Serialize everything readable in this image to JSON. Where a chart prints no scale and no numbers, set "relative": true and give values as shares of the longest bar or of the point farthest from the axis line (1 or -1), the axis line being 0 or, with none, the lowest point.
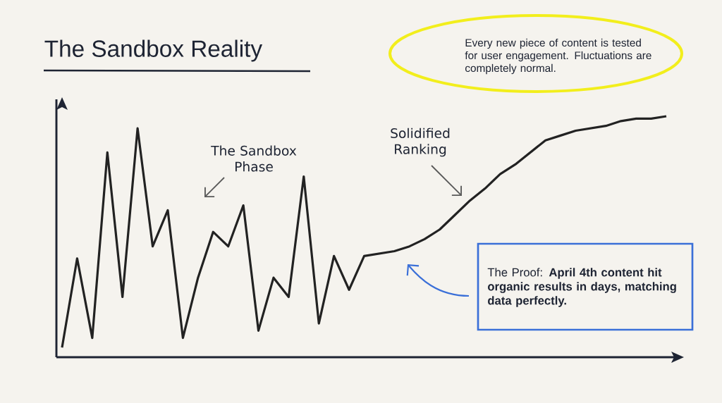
{
  "chart_data": {
    "type": "line",
    "title": "The Sandbox Reality",
    "relative": true,
    "color": "#222222",
    "categories": [
      null,
      null,
      null,
      null,
      null,
      null,
      null,
      null,
      null,
      null,
      null,
      null,
      null,
      null,
      null,
      null,
      null,
      null,
      null,
      null,
      null,
      null,
      null,
      null,
      null,
      null,
      null,
      null,
      null,
      null,
      null,
      null,
      null,
      null,
      null,
      null,
      null,
      null,
      null,
      null,
      null
    ],
    "values": [
      0.04,
      0.41,
      0.08,
      0.85,
      0.25,
      0.95,
      0.46,
      0.61,
      0.08,
      0.33,
      0.52,
      0.46,
      0.63,
      0.11,
      0.33,
      0.25,
      0.75,
      0.14,
      0.42,
      0.28,
      0.42,
      0.43,
      0.44,
      0.46,
      0.49,
      0.53,
      0.59,
      0.65,
      0.7,
      0.76,
      0.8,
      0.85,
      0.9,
      0.92,
      0.94,
      0.95,
      0.96,
      0.98,
      0.99,
      0.99,
      1
    ],
    "annotations": [
      "The Sandbox Phase",
      "Solidified Ranking",
      "Every new piece of content is tested for user engagement. Fluctuations are completely normal.",
      "The Proof: **April 4th content hit organic results in days, matching data perfectly.**"
    ]
  }
}
